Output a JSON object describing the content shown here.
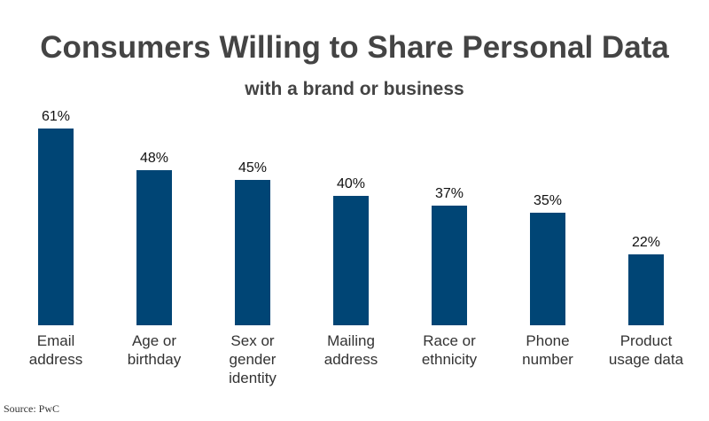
{
  "chart_data": {
    "type": "bar",
    "title": "Consumers Willing to Share Personal Data",
    "subtitle": "with a brand or business",
    "categories": [
      "Email address",
      "Age or birthday",
      "Sex or gender identity",
      "Mailing address",
      "Race or ethnicity",
      "Phone number",
      "Product usage data"
    ],
    "values": [
      61,
      48,
      45,
      40,
      37,
      35,
      22
    ],
    "value_labels": [
      "61%",
      "48%",
      "45%",
      "40%",
      "37%",
      "35%",
      "22%"
    ],
    "color": "#004575",
    "source": "Source: PwC"
  }
}
